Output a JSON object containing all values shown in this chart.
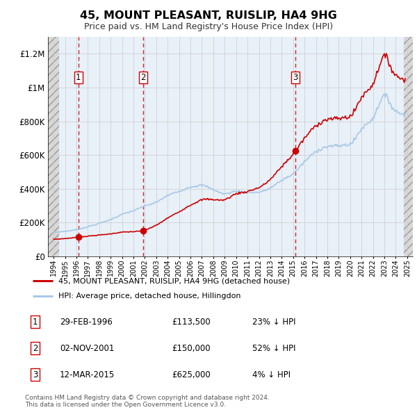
{
  "title": "45, MOUNT PLEASANT, RUISLIP, HA4 9HG",
  "subtitle": "Price paid vs. HM Land Registry's House Price Index (HPI)",
  "ylim": [
    0,
    1300000
  ],
  "yticks": [
    0,
    200000,
    400000,
    600000,
    800000,
    1000000,
    1200000
  ],
  "ytick_labels": [
    "£0",
    "£200K",
    "£400K",
    "£600K",
    "£800K",
    "£1M",
    "£1.2M"
  ],
  "hpi_color": "#a8c8e8",
  "sale_color": "#cc0000",
  "dashed_line_color": "#cc0000",
  "background_plot": "#e8f0f8",
  "grid_color": "#cccccc",
  "sale_points": [
    {
      "date": 1996.16,
      "price": 113500,
      "label": "1"
    },
    {
      "date": 2001.84,
      "price": 150000,
      "label": "2"
    },
    {
      "date": 2015.19,
      "price": 625000,
      "label": "3"
    }
  ],
  "legend_entries": [
    {
      "color": "#cc0000",
      "label": "45, MOUNT PLEASANT, RUISLIP, HA4 9HG (detached house)"
    },
    {
      "color": "#a8c8e8",
      "label": "HPI: Average price, detached house, Hillingdon"
    }
  ],
  "table_rows": [
    {
      "num": "1",
      "date": "29-FEB-1996",
      "price": "£113,500",
      "hpi": "23% ↓ HPI"
    },
    {
      "num": "2",
      "date": "02-NOV-2001",
      "price": "£150,000",
      "hpi": "52% ↓ HPI"
    },
    {
      "num": "3",
      "date": "12-MAR-2015",
      "price": "£625,000",
      "hpi": "4% ↓ HPI"
    }
  ],
  "footnote": "Contains HM Land Registry data © Crown copyright and database right 2024.\nThis data is licensed under the Open Government Licence v3.0.",
  "xmin": 1993.5,
  "xmax": 2025.5,
  "hatch_left_end": 1994.5,
  "hatch_right_start": 2024.7
}
